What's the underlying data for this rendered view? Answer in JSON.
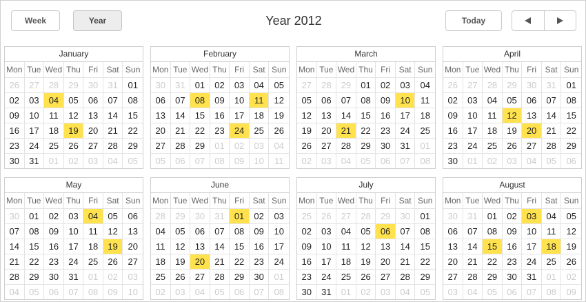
{
  "toolbar": {
    "week_label": "Week",
    "year_label": "Year",
    "today_label": "Today",
    "prev_icon": "triangle-left-icon",
    "next_icon": "triangle-right-icon"
  },
  "title": "Year 2012",
  "weekdays": [
    "Mon",
    "Tue",
    "Wed",
    "Thu",
    "Fri",
    "Sat",
    "Sun"
  ],
  "colors": {
    "event": "#ffe24d",
    "other_month_text": "#cccccc"
  },
  "months": [
    {
      "name": "January",
      "days": [
        {
          "d": "26",
          "o": 1
        },
        {
          "d": "27",
          "o": 1
        },
        {
          "d": "28",
          "o": 1
        },
        {
          "d": "29",
          "o": 1
        },
        {
          "d": "30",
          "o": 1
        },
        {
          "d": "31",
          "o": 1
        },
        {
          "d": "01"
        },
        {
          "d": "02"
        },
        {
          "d": "03"
        },
        {
          "d": "04",
          "e": 1
        },
        {
          "d": "05"
        },
        {
          "d": "06"
        },
        {
          "d": "07"
        },
        {
          "d": "08"
        },
        {
          "d": "09"
        },
        {
          "d": "10"
        },
        {
          "d": "11"
        },
        {
          "d": "12"
        },
        {
          "d": "13"
        },
        {
          "d": "14"
        },
        {
          "d": "15"
        },
        {
          "d": "16"
        },
        {
          "d": "17"
        },
        {
          "d": "18"
        },
        {
          "d": "19",
          "e": 1
        },
        {
          "d": "20"
        },
        {
          "d": "21"
        },
        {
          "d": "22"
        },
        {
          "d": "23"
        },
        {
          "d": "24"
        },
        {
          "d": "25"
        },
        {
          "d": "26"
        },
        {
          "d": "27"
        },
        {
          "d": "28"
        },
        {
          "d": "29"
        },
        {
          "d": "30"
        },
        {
          "d": "31"
        },
        {
          "d": "01",
          "o": 1
        },
        {
          "d": "02",
          "o": 1
        },
        {
          "d": "03",
          "o": 1
        },
        {
          "d": "04",
          "o": 1
        },
        {
          "d": "05",
          "o": 1
        }
      ]
    },
    {
      "name": "February",
      "days": [
        {
          "d": "30",
          "o": 1
        },
        {
          "d": "31",
          "o": 1
        },
        {
          "d": "01"
        },
        {
          "d": "02"
        },
        {
          "d": "03"
        },
        {
          "d": "04"
        },
        {
          "d": "05"
        },
        {
          "d": "06"
        },
        {
          "d": "07"
        },
        {
          "d": "08",
          "e": 1
        },
        {
          "d": "09"
        },
        {
          "d": "10"
        },
        {
          "d": "11",
          "e": 1
        },
        {
          "d": "12"
        },
        {
          "d": "13"
        },
        {
          "d": "14"
        },
        {
          "d": "15"
        },
        {
          "d": "16"
        },
        {
          "d": "17"
        },
        {
          "d": "18"
        },
        {
          "d": "19"
        },
        {
          "d": "20"
        },
        {
          "d": "21"
        },
        {
          "d": "22"
        },
        {
          "d": "23"
        },
        {
          "d": "24",
          "e": 1
        },
        {
          "d": "25"
        },
        {
          "d": "26"
        },
        {
          "d": "27"
        },
        {
          "d": "28"
        },
        {
          "d": "29"
        },
        {
          "d": "01",
          "o": 1
        },
        {
          "d": "02",
          "o": 1
        },
        {
          "d": "03",
          "o": 1
        },
        {
          "d": "04",
          "o": 1
        },
        {
          "d": "05",
          "o": 1
        },
        {
          "d": "06",
          "o": 1
        },
        {
          "d": "07",
          "o": 1
        },
        {
          "d": "08",
          "o": 1
        },
        {
          "d": "09",
          "o": 1
        },
        {
          "d": "10",
          "o": 1
        },
        {
          "d": "11",
          "o": 1
        }
      ]
    },
    {
      "name": "March",
      "days": [
        {
          "d": "27",
          "o": 1
        },
        {
          "d": "28",
          "o": 1
        },
        {
          "d": "29",
          "o": 1
        },
        {
          "d": "01"
        },
        {
          "d": "02"
        },
        {
          "d": "03"
        },
        {
          "d": "04"
        },
        {
          "d": "05"
        },
        {
          "d": "06"
        },
        {
          "d": "07"
        },
        {
          "d": "08"
        },
        {
          "d": "09"
        },
        {
          "d": "10",
          "e": 1
        },
        {
          "d": "11"
        },
        {
          "d": "12"
        },
        {
          "d": "13"
        },
        {
          "d": "14"
        },
        {
          "d": "15"
        },
        {
          "d": "16"
        },
        {
          "d": "17"
        },
        {
          "d": "18"
        },
        {
          "d": "19"
        },
        {
          "d": "20"
        },
        {
          "d": "21",
          "e": 1
        },
        {
          "d": "22"
        },
        {
          "d": "23"
        },
        {
          "d": "24"
        },
        {
          "d": "25"
        },
        {
          "d": "26"
        },
        {
          "d": "27"
        },
        {
          "d": "28"
        },
        {
          "d": "29"
        },
        {
          "d": "30"
        },
        {
          "d": "31"
        },
        {
          "d": "01",
          "o": 1
        },
        {
          "d": "02",
          "o": 1
        },
        {
          "d": "03",
          "o": 1
        },
        {
          "d": "04",
          "o": 1
        },
        {
          "d": "05",
          "o": 1
        },
        {
          "d": "06",
          "o": 1
        },
        {
          "d": "07",
          "o": 1
        },
        {
          "d": "08",
          "o": 1
        }
      ]
    },
    {
      "name": "April",
      "days": [
        {
          "d": "26",
          "o": 1
        },
        {
          "d": "27",
          "o": 1
        },
        {
          "d": "28",
          "o": 1
        },
        {
          "d": "29",
          "o": 1
        },
        {
          "d": "30",
          "o": 1
        },
        {
          "d": "31",
          "o": 1
        },
        {
          "d": "01"
        },
        {
          "d": "02"
        },
        {
          "d": "03"
        },
        {
          "d": "04"
        },
        {
          "d": "05"
        },
        {
          "d": "06"
        },
        {
          "d": "07"
        },
        {
          "d": "08"
        },
        {
          "d": "09"
        },
        {
          "d": "10"
        },
        {
          "d": "11"
        },
        {
          "d": "12",
          "e": 1
        },
        {
          "d": "13"
        },
        {
          "d": "14"
        },
        {
          "d": "15"
        },
        {
          "d": "16"
        },
        {
          "d": "17"
        },
        {
          "d": "18"
        },
        {
          "d": "19"
        },
        {
          "d": "20",
          "e": 1
        },
        {
          "d": "21"
        },
        {
          "d": "22"
        },
        {
          "d": "23"
        },
        {
          "d": "24"
        },
        {
          "d": "25"
        },
        {
          "d": "26"
        },
        {
          "d": "27"
        },
        {
          "d": "28"
        },
        {
          "d": "29"
        },
        {
          "d": "30"
        },
        {
          "d": "01",
          "o": 1
        },
        {
          "d": "02",
          "o": 1
        },
        {
          "d": "03",
          "o": 1
        },
        {
          "d": "04",
          "o": 1
        },
        {
          "d": "05",
          "o": 1
        },
        {
          "d": "06",
          "o": 1
        }
      ]
    },
    {
      "name": "May",
      "days": [
        {
          "d": "30",
          "o": 1
        },
        {
          "d": "01"
        },
        {
          "d": "02"
        },
        {
          "d": "03"
        },
        {
          "d": "04",
          "e": 1
        },
        {
          "d": "05"
        },
        {
          "d": "06"
        },
        {
          "d": "07"
        },
        {
          "d": "08"
        },
        {
          "d": "09"
        },
        {
          "d": "10"
        },
        {
          "d": "11"
        },
        {
          "d": "12"
        },
        {
          "d": "13"
        },
        {
          "d": "14"
        },
        {
          "d": "15"
        },
        {
          "d": "16"
        },
        {
          "d": "17"
        },
        {
          "d": "18"
        },
        {
          "d": "19",
          "e": 1
        },
        {
          "d": "20"
        },
        {
          "d": "21"
        },
        {
          "d": "22"
        },
        {
          "d": "23"
        },
        {
          "d": "24"
        },
        {
          "d": "25"
        },
        {
          "d": "26"
        },
        {
          "d": "27"
        },
        {
          "d": "28"
        },
        {
          "d": "29"
        },
        {
          "d": "30"
        },
        {
          "d": "31"
        },
        {
          "d": "01",
          "o": 1
        },
        {
          "d": "02",
          "o": 1
        },
        {
          "d": "03",
          "o": 1
        },
        {
          "d": "04",
          "o": 1
        },
        {
          "d": "05",
          "o": 1
        },
        {
          "d": "06",
          "o": 1
        },
        {
          "d": "07",
          "o": 1
        },
        {
          "d": "08",
          "o": 1
        },
        {
          "d": "09",
          "o": 1
        },
        {
          "d": "10",
          "o": 1
        }
      ]
    },
    {
      "name": "June",
      "days": [
        {
          "d": "28",
          "o": 1
        },
        {
          "d": "29",
          "o": 1
        },
        {
          "d": "30",
          "o": 1
        },
        {
          "d": "31",
          "o": 1
        },
        {
          "d": "01",
          "e": 1
        },
        {
          "d": "02"
        },
        {
          "d": "03"
        },
        {
          "d": "04"
        },
        {
          "d": "05"
        },
        {
          "d": "06"
        },
        {
          "d": "07"
        },
        {
          "d": "08"
        },
        {
          "d": "09"
        },
        {
          "d": "10"
        },
        {
          "d": "11"
        },
        {
          "d": "12"
        },
        {
          "d": "13"
        },
        {
          "d": "14"
        },
        {
          "d": "15"
        },
        {
          "d": "16"
        },
        {
          "d": "17"
        },
        {
          "d": "18"
        },
        {
          "d": "19"
        },
        {
          "d": "20",
          "e": 1
        },
        {
          "d": "21"
        },
        {
          "d": "22"
        },
        {
          "d": "23"
        },
        {
          "d": "24"
        },
        {
          "d": "25"
        },
        {
          "d": "26"
        },
        {
          "d": "27"
        },
        {
          "d": "28"
        },
        {
          "d": "29"
        },
        {
          "d": "30"
        },
        {
          "d": "01",
          "o": 1
        },
        {
          "d": "02",
          "o": 1
        },
        {
          "d": "03",
          "o": 1
        },
        {
          "d": "04",
          "o": 1
        },
        {
          "d": "05",
          "o": 1
        },
        {
          "d": "06",
          "o": 1
        },
        {
          "d": "07",
          "o": 1
        },
        {
          "d": "08",
          "o": 1
        }
      ]
    },
    {
      "name": "July",
      "days": [
        {
          "d": "25",
          "o": 1
        },
        {
          "d": "26",
          "o": 1
        },
        {
          "d": "27",
          "o": 1
        },
        {
          "d": "28",
          "o": 1
        },
        {
          "d": "29",
          "o": 1
        },
        {
          "d": "30",
          "o": 1
        },
        {
          "d": "01"
        },
        {
          "d": "02"
        },
        {
          "d": "03"
        },
        {
          "d": "04"
        },
        {
          "d": "05"
        },
        {
          "d": "06",
          "e": 1
        },
        {
          "d": "07"
        },
        {
          "d": "08"
        },
        {
          "d": "09"
        },
        {
          "d": "10"
        },
        {
          "d": "11"
        },
        {
          "d": "12"
        },
        {
          "d": "13"
        },
        {
          "d": "14"
        },
        {
          "d": "15"
        },
        {
          "d": "16"
        },
        {
          "d": "17"
        },
        {
          "d": "18"
        },
        {
          "d": "19"
        },
        {
          "d": "20"
        },
        {
          "d": "21"
        },
        {
          "d": "22"
        },
        {
          "d": "23"
        },
        {
          "d": "24"
        },
        {
          "d": "25"
        },
        {
          "d": "26"
        },
        {
          "d": "27"
        },
        {
          "d": "28"
        },
        {
          "d": "29"
        },
        {
          "d": "30"
        },
        {
          "d": "31"
        },
        {
          "d": "01",
          "o": 1
        },
        {
          "d": "02",
          "o": 1
        },
        {
          "d": "03",
          "o": 1
        },
        {
          "d": "04",
          "o": 1
        },
        {
          "d": "05",
          "o": 1
        }
      ]
    },
    {
      "name": "August",
      "days": [
        {
          "d": "30",
          "o": 1
        },
        {
          "d": "31",
          "o": 1
        },
        {
          "d": "01"
        },
        {
          "d": "02"
        },
        {
          "d": "03",
          "e": 1
        },
        {
          "d": "04"
        },
        {
          "d": "05"
        },
        {
          "d": "06"
        },
        {
          "d": "07"
        },
        {
          "d": "08"
        },
        {
          "d": "09"
        },
        {
          "d": "10"
        },
        {
          "d": "11"
        },
        {
          "d": "12"
        },
        {
          "d": "13"
        },
        {
          "d": "14"
        },
        {
          "d": "15",
          "e": 1
        },
        {
          "d": "16"
        },
        {
          "d": "17"
        },
        {
          "d": "18",
          "e": 1
        },
        {
          "d": "19"
        },
        {
          "d": "20"
        },
        {
          "d": "21"
        },
        {
          "d": "22"
        },
        {
          "d": "23"
        },
        {
          "d": "24"
        },
        {
          "d": "25"
        },
        {
          "d": "26"
        },
        {
          "d": "27"
        },
        {
          "d": "28"
        },
        {
          "d": "29"
        },
        {
          "d": "30"
        },
        {
          "d": "31"
        },
        {
          "d": "01",
          "o": 1
        },
        {
          "d": "02",
          "o": 1
        },
        {
          "d": "03",
          "o": 1
        },
        {
          "d": "04",
          "o": 1
        },
        {
          "d": "05",
          "o": 1
        },
        {
          "d": "06",
          "o": 1
        },
        {
          "d": "07",
          "o": 1
        },
        {
          "d": "08",
          "o": 1
        },
        {
          "d": "09",
          "o": 1
        }
      ]
    }
  ]
}
